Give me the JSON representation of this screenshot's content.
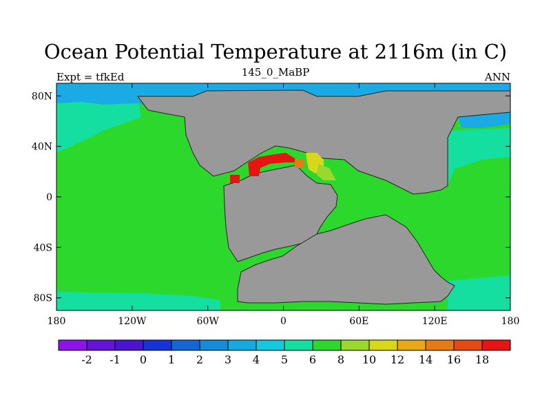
{
  "title": "Ocean Potential Temperature at 2116m (in C)",
  "subtitle_left": "Expt = tfkEd",
  "subtitle_center": "145_0_MaBP",
  "subtitle_right": "ANN",
  "map": {
    "lon_range": [
      -180,
      180
    ],
    "lat_range": [
      -90,
      90
    ],
    "x_ticks": [
      {
        "value": -180,
        "label": "180"
      },
      {
        "value": -120,
        "label": "120W"
      },
      {
        "value": -60,
        "label": "60W"
      },
      {
        "value": 0,
        "label": "0"
      },
      {
        "value": 60,
        "label": "60E"
      },
      {
        "value": 120,
        "label": "120E"
      },
      {
        "value": 180,
        "label": "180"
      }
    ],
    "y_ticks": [
      {
        "value": 80,
        "label": "80N"
      },
      {
        "value": 40,
        "label": "40N"
      },
      {
        "value": 0,
        "label": "0"
      },
      {
        "value": -40,
        "label": "40S"
      },
      {
        "value": -80,
        "label": "80S"
      }
    ],
    "colors": {
      "land": "#999999",
      "temp_3_4": "#1aabe6",
      "temp_5_6": "#14dea0",
      "temp_6_8": "#2dd82d",
      "temp_8_10": "#9ad82d",
      "temp_10_12": "#d8d81a",
      "temp_14_16": "#e67a14",
      "temp_18_plus": "#e81414"
    }
  },
  "colorbar": {
    "colors": [
      "#8c14e8",
      "#6414d8",
      "#4a14d0",
      "#1433d8",
      "#1466d8",
      "#148cd8",
      "#14aade",
      "#14c8e0",
      "#14dea0",
      "#2dd82d",
      "#9ad82d",
      "#d8d81a",
      "#e6a814",
      "#e67a14",
      "#e64a14",
      "#e81414"
    ],
    "labels": [
      "-2",
      "-1",
      "0",
      "1",
      "2",
      "3",
      "4",
      "5",
      "6",
      "8",
      "10",
      "12",
      "14",
      "16",
      "18"
    ]
  }
}
